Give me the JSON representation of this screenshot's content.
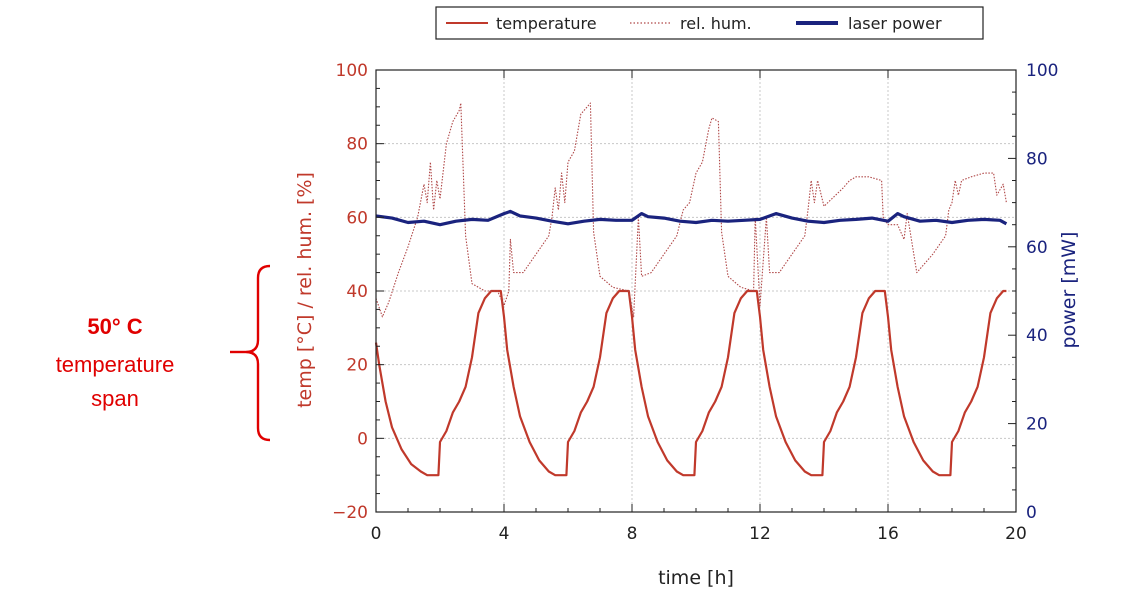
{
  "chart_data": {
    "type": "line",
    "xlabel": "time [h]",
    "ylabel_left": "temp [°C] / rel. hum. [%]",
    "ylabel_right": "power [mW]",
    "xlim": [
      0,
      20
    ],
    "ylim_left": [
      -20,
      100
    ],
    "ylim_right": [
      0,
      100
    ],
    "xticks": [
      0,
      4,
      8,
      12,
      16,
      20
    ],
    "yticks_left": [
      -20,
      0,
      20,
      40,
      60,
      80,
      100
    ],
    "yticks_right": [
      0,
      20,
      40,
      60,
      80,
      100
    ],
    "grid": true,
    "legend_position": "top",
    "colors": {
      "temperature": "#c0392b",
      "humidity": "#b04848",
      "power": "#1a237e",
      "annotation": "#e00000"
    },
    "series": [
      {
        "name": "temperature",
        "axis": "left",
        "style": "solid",
        "x": [
          0,
          0.1,
          0.3,
          0.5,
          0.8,
          1.1,
          1.4,
          1.6,
          1.8,
          1.95,
          2.0,
          2.2,
          2.4,
          2.6,
          2.8,
          3.0,
          3.2,
          3.4,
          3.6,
          3.9,
          4.0,
          4.1,
          4.3,
          4.5,
          4.8,
          5.1,
          5.4,
          5.6,
          5.8,
          5.95,
          6.0,
          6.2,
          6.4,
          6.6,
          6.8,
          7.0,
          7.2,
          7.4,
          7.6,
          7.9,
          8.0,
          8.1,
          8.3,
          8.5,
          8.8,
          9.1,
          9.4,
          9.6,
          9.8,
          9.95,
          10.0,
          10.2,
          10.4,
          10.6,
          10.8,
          11.0,
          11.2,
          11.4,
          11.6,
          11.9,
          12.0,
          12.1,
          12.3,
          12.5,
          12.8,
          13.1,
          13.4,
          13.6,
          13.8,
          13.95,
          14.0,
          14.2,
          14.4,
          14.6,
          14.8,
          15.0,
          15.2,
          15.4,
          15.6,
          15.9,
          16.0,
          16.1,
          16.3,
          16.5,
          16.8,
          17.1,
          17.4,
          17.6,
          17.8,
          17.95,
          18.0,
          18.2,
          18.4,
          18.6,
          18.8,
          19.0,
          19.2,
          19.4,
          19.6,
          19.7
        ],
        "values": [
          26,
          20,
          10,
          3,
          -3,
          -7,
          -9,
          -10,
          -10,
          -10,
          -1,
          2,
          7,
          10,
          14,
          22,
          34,
          38,
          40,
          40,
          33,
          24,
          14,
          6,
          -1,
          -6,
          -9,
          -10,
          -10,
          -10,
          -1,
          2,
          7,
          10,
          14,
          22,
          34,
          38,
          40,
          40,
          33,
          24,
          14,
          6,
          -1,
          -6,
          -9,
          -10,
          -10,
          -10,
          -1,
          2,
          7,
          10,
          14,
          22,
          34,
          38,
          40,
          40,
          33,
          24,
          14,
          6,
          -1,
          -6,
          -9,
          -10,
          -10,
          -10,
          -1,
          2,
          7,
          10,
          14,
          22,
          34,
          38,
          40,
          40,
          33,
          24,
          14,
          6,
          -1,
          -6,
          -9,
          -10,
          -10,
          -10,
          -1,
          2,
          7,
          10,
          14,
          22,
          34,
          38,
          40,
          40
        ]
      },
      {
        "name": "rel. hum.",
        "axis": "left",
        "style": "dotted",
        "x": [
          0,
          0.2,
          0.4,
          0.7,
          1.0,
          1.3,
          1.5,
          1.6,
          1.7,
          1.8,
          1.9,
          2.0,
          2.2,
          2.4,
          2.6,
          2.65,
          2.8,
          3.0,
          3.4,
          3.8,
          4.0,
          4.15,
          4.2,
          4.3,
          4.6,
          5.0,
          5.4,
          5.5,
          5.6,
          5.7,
          5.8,
          5.9,
          6.0,
          6.2,
          6.4,
          6.6,
          6.7,
          6.8,
          7.0,
          7.4,
          7.9,
          8.05,
          8.2,
          8.3,
          8.6,
          9.0,
          9.4,
          9.6,
          9.8,
          10.0,
          10.2,
          10.4,
          10.5,
          10.7,
          10.8,
          11.0,
          11.4,
          11.8,
          11.85,
          12.0,
          12.2,
          12.3,
          12.6,
          13.0,
          13.4,
          13.5,
          13.6,
          13.7,
          13.8,
          14.0,
          14.6,
          14.8,
          15.0,
          15.4,
          15.8,
          15.85,
          16.0,
          16.3,
          16.5,
          16.6,
          16.9,
          17.4,
          17.8,
          17.9,
          18.0,
          18.1,
          18.2,
          18.3,
          18.6,
          19.0,
          19.3,
          19.4,
          19.6,
          19.7
        ],
        "values": [
          38,
          33,
          37,
          45,
          52,
          60,
          69,
          64,
          75,
          62,
          70,
          65,
          80,
          86,
          89,
          91,
          55,
          42,
          40,
          40,
          36,
          40,
          54,
          45,
          45,
          50,
          55,
          60,
          68,
          62,
          72,
          64,
          75,
          78,
          88,
          90,
          91,
          56,
          44,
          41,
          40,
          33,
          60,
          44,
          45,
          50,
          55,
          62,
          64,
          72,
          75,
          84,
          87,
          86,
          56,
          44,
          41,
          40,
          60,
          36,
          60,
          45,
          45,
          50,
          55,
          62,
          70,
          64,
          70,
          63,
          68,
          70,
          71,
          71,
          70,
          60,
          58,
          58,
          54,
          61,
          45,
          50,
          55,
          62,
          64,
          70,
          66,
          70,
          71,
          72,
          72,
          66,
          69,
          64
        ]
      },
      {
        "name": "laser power",
        "axis": "right",
        "style": "solid",
        "x": [
          0,
          0.5,
          1.0,
          1.5,
          2.0,
          2.5,
          3.0,
          3.5,
          4.0,
          4.2,
          4.5,
          5.0,
          5.5,
          6.0,
          6.5,
          7.0,
          7.5,
          8.0,
          8.3,
          8.5,
          9.0,
          9.5,
          10.0,
          10.5,
          11.0,
          11.5,
          12.0,
          12.5,
          13.0,
          13.5,
          14.0,
          14.5,
          15.0,
          15.5,
          16.0,
          16.3,
          16.5,
          17.0,
          17.5,
          18.0,
          18.5,
          19.0,
          19.5,
          19.7
        ],
        "values": [
          67,
          66.5,
          65.5,
          65.8,
          65,
          65.8,
          66.2,
          66,
          67.5,
          68,
          67,
          66.5,
          65.8,
          65.2,
          65.8,
          66.2,
          66,
          66,
          67.5,
          66.8,
          66.5,
          65.8,
          65.5,
          66,
          65.8,
          66,
          66.2,
          67.5,
          66.5,
          65.8,
          65.5,
          66,
          66.2,
          66.5,
          65.8,
          67.5,
          66.8,
          65.8,
          66,
          65.5,
          66,
          66.2,
          66,
          65.2
        ]
      }
    ]
  },
  "legend": {
    "temperature": "temperature",
    "humidity": "rel. hum.",
    "power": "laser power"
  },
  "annotation": {
    "title": "50° C",
    "line1": "temperature",
    "line2": "span"
  }
}
